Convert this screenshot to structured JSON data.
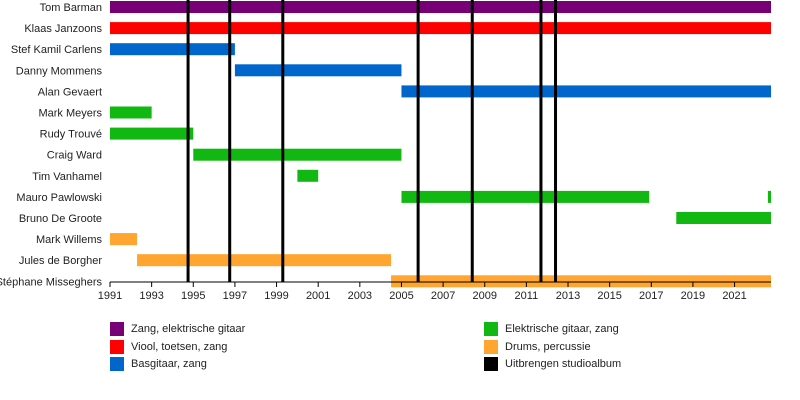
{
  "chart_data": {
    "type": "timeline",
    "title": "",
    "xlabel": "",
    "ylabel": "",
    "xlim": [
      1991,
      2022.75
    ],
    "x_ticks": [
      1991,
      1993,
      1995,
      1997,
      1999,
      2001,
      2003,
      2005,
      2007,
      2009,
      2011,
      2013,
      2015,
      2017,
      2019,
      2021
    ],
    "grid": false,
    "legend_position": "bottom",
    "members": [
      "Tom Barman",
      "Klaas Janzoons",
      "Stef Kamil Carlens",
      "Danny Mommens",
      "Alan Gevaert",
      "Mark Meyers",
      "Rudy Trouvé",
      "Craig Ward",
      "Tim Vanhamel",
      "Mauro Pawlowski",
      "Bruno De Groote",
      "Mark Willems",
      "Jules de Borgher",
      "Stéphane Misseghers"
    ],
    "roles": [
      {
        "key": "vocals_guitar",
        "label": "Zang, elektrische gitaar",
        "color": "#770077"
      },
      {
        "key": "violin",
        "label": "Viool, toetsen, zang",
        "color": "#ff0000"
      },
      {
        "key": "bass",
        "label": "Basgitaar, zang",
        "color": "#0066cc"
      },
      {
        "key": "guitar",
        "label": "Elektrische gitaar, zang",
        "color": "#11b811"
      },
      {
        "key": "drums",
        "label": "Drums, percussie",
        "color": "#ffa530"
      },
      {
        "key": "album",
        "label": "Uitbrengen studioalbum",
        "color": "#000000"
      }
    ],
    "bars": [
      {
        "member": 0,
        "role": "vocals_guitar",
        "start": 1991.0,
        "end": 2022.75
      },
      {
        "member": 1,
        "role": "violin",
        "start": 1991.0,
        "end": 2022.75
      },
      {
        "member": 2,
        "role": "bass",
        "start": 1991.0,
        "end": 1997.0
      },
      {
        "member": 3,
        "role": "bass",
        "start": 1997.0,
        "end": 2005.0
      },
      {
        "member": 4,
        "role": "bass",
        "start": 2005.0,
        "end": 2022.75
      },
      {
        "member": 5,
        "role": "guitar",
        "start": 1991.0,
        "end": 1993.0
      },
      {
        "member": 6,
        "role": "guitar",
        "start": 1991.0,
        "end": 1995.0
      },
      {
        "member": 7,
        "role": "guitar",
        "start": 1995.0,
        "end": 2005.0
      },
      {
        "member": 8,
        "role": "guitar",
        "start": 2000.0,
        "end": 2001.0
      },
      {
        "member": 9,
        "role": "guitar",
        "start": 2005.0,
        "end": 2016.9
      },
      {
        "member": 9,
        "role": "guitar",
        "start": 2022.6,
        "end": 2022.75
      },
      {
        "member": 10,
        "role": "guitar",
        "start": 2018.2,
        "end": 2022.75
      },
      {
        "member": 11,
        "role": "drums",
        "start": 1991.0,
        "end": 1992.3
      },
      {
        "member": 12,
        "role": "drums",
        "start": 1992.3,
        "end": 2004.5
      },
      {
        "member": 13,
        "role": "drums",
        "start": 2004.5,
        "end": 2022.75
      }
    ],
    "album_releases": [
      1994.75,
      1996.75,
      1999.3,
      2005.8,
      2008.4,
      2011.7,
      2012.4
    ]
  }
}
